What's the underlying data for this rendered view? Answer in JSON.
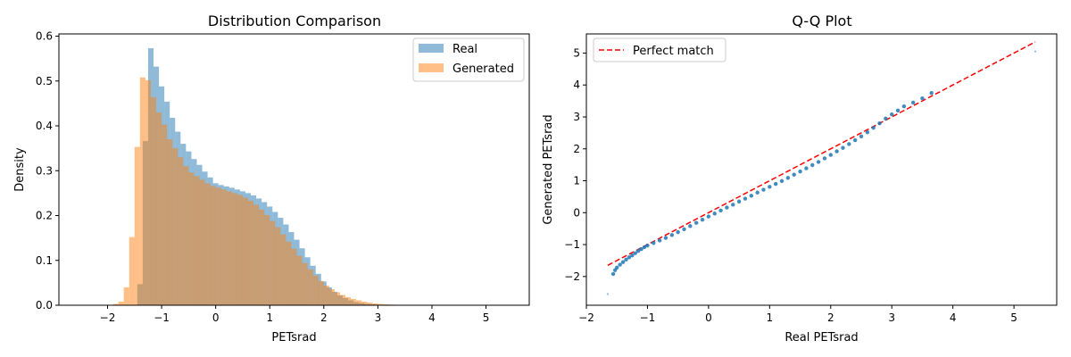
{
  "chart_data": [
    {
      "type": "histogram",
      "title": "Distribution Comparison",
      "xlabel": "PETsrad",
      "ylabel": "Density",
      "xlim": [
        -2.9,
        5.8
      ],
      "ylim": [
        0,
        0.605
      ],
      "xticks": [
        -2,
        -1,
        0,
        1,
        2,
        3,
        4,
        5
      ],
      "yticks": [
        0.0,
        0.1,
        0.2,
        0.3,
        0.4,
        0.5,
        0.6
      ],
      "grid": false,
      "legend_position": "top-right",
      "series": [
        {
          "name": "Real",
          "color": "#1f77b4",
          "opacity": 0.5,
          "bins": [
            [
              -1.55,
              -1.45,
              0.001
            ],
            [
              -1.45,
              -1.35,
              0.047
            ],
            [
              -1.35,
              -1.25,
              0.366
            ],
            [
              -1.25,
              -1.15,
              0.573
            ],
            [
              -1.15,
              -1.05,
              0.532
            ],
            [
              -1.05,
              -0.95,
              0.488
            ],
            [
              -0.95,
              -0.85,
              0.454
            ],
            [
              -0.85,
              -0.75,
              0.418
            ],
            [
              -0.75,
              -0.65,
              0.387
            ],
            [
              -0.65,
              -0.55,
              0.36
            ],
            [
              -0.55,
              -0.45,
              0.343
            ],
            [
              -0.45,
              -0.35,
              0.326
            ],
            [
              -0.35,
              -0.25,
              0.313
            ],
            [
              -0.25,
              -0.15,
              0.298
            ],
            [
              -0.15,
              -0.05,
              0.285
            ],
            [
              -0.05,
              0.05,
              0.272
            ],
            [
              0.05,
              0.15,
              0.268
            ],
            [
              0.15,
              0.25,
              0.265
            ],
            [
              0.25,
              0.35,
              0.262
            ],
            [
              0.35,
              0.45,
              0.258
            ],
            [
              0.45,
              0.55,
              0.254
            ],
            [
              0.55,
              0.65,
              0.25
            ],
            [
              0.65,
              0.75,
              0.245
            ],
            [
              0.75,
              0.85,
              0.238
            ],
            [
              0.85,
              0.95,
              0.23
            ],
            [
              0.95,
              1.05,
              0.22
            ],
            [
              1.05,
              1.15,
              0.208
            ],
            [
              1.15,
              1.25,
              0.195
            ],
            [
              1.25,
              1.35,
              0.18
            ],
            [
              1.35,
              1.45,
              0.163
            ],
            [
              1.45,
              1.55,
              0.146
            ],
            [
              1.55,
              1.65,
              0.127
            ],
            [
              1.65,
              1.75,
              0.107
            ],
            [
              1.75,
              1.85,
              0.088
            ],
            [
              1.85,
              1.95,
              0.07
            ],
            [
              1.95,
              2.05,
              0.053
            ],
            [
              2.05,
              2.15,
              0.04
            ],
            [
              2.15,
              2.25,
              0.03
            ],
            [
              2.25,
              2.35,
              0.022
            ],
            [
              2.35,
              2.45,
              0.016
            ],
            [
              2.45,
              2.55,
              0.011
            ],
            [
              2.55,
              2.65,
              0.007
            ],
            [
              2.65,
              2.75,
              0.005
            ],
            [
              2.75,
              2.85,
              0.003
            ],
            [
              2.85,
              2.95,
              0.002
            ],
            [
              2.95,
              3.05,
              0.001
            ]
          ]
        },
        {
          "name": "Generated",
          "color": "#ff7f0e",
          "opacity": 0.5,
          "bins": [
            [
              -2.0,
              -1.9,
              0.001
            ],
            [
              -1.9,
              -1.8,
              0.003
            ],
            [
              -1.8,
              -1.7,
              0.008
            ],
            [
              -1.7,
              -1.6,
              0.04
            ],
            [
              -1.6,
              -1.5,
              0.152
            ],
            [
              -1.5,
              -1.4,
              0.353
            ],
            [
              -1.4,
              -1.3,
              0.508
            ],
            [
              -1.3,
              -1.2,
              0.502
            ],
            [
              -1.2,
              -1.1,
              0.464
            ],
            [
              -1.1,
              -1.0,
              0.43
            ],
            [
              -1.0,
              -0.9,
              0.403
            ],
            [
              -0.9,
              -0.8,
              0.37
            ],
            [
              -0.8,
              -0.7,
              0.35
            ],
            [
              -0.7,
              -0.6,
              0.33
            ],
            [
              -0.6,
              -0.5,
              0.31
            ],
            [
              -0.5,
              -0.4,
              0.296
            ],
            [
              -0.4,
              -0.3,
              0.288
            ],
            [
              -0.3,
              -0.2,
              0.28
            ],
            [
              -0.2,
              -0.1,
              0.272
            ],
            [
              -0.1,
              0.0,
              0.266
            ],
            [
              0.0,
              0.1,
              0.262
            ],
            [
              0.1,
              0.2,
              0.258
            ],
            [
              0.2,
              0.3,
              0.254
            ],
            [
              0.3,
              0.4,
              0.25
            ],
            [
              0.4,
              0.5,
              0.246
            ],
            [
              0.5,
              0.6,
              0.24
            ],
            [
              0.6,
              0.7,
              0.233
            ],
            [
              0.7,
              0.8,
              0.224
            ],
            [
              0.8,
              0.9,
              0.213
            ],
            [
              0.9,
              1.0,
              0.201
            ],
            [
              1.0,
              1.1,
              0.188
            ],
            [
              1.1,
              1.2,
              0.174
            ],
            [
              1.2,
              1.3,
              0.158
            ],
            [
              1.3,
              1.4,
              0.142
            ],
            [
              1.4,
              1.5,
              0.126
            ],
            [
              1.5,
              1.6,
              0.11
            ],
            [
              1.6,
              1.7,
              0.094
            ],
            [
              1.7,
              1.8,
              0.08
            ],
            [
              1.8,
              1.9,
              0.066
            ],
            [
              1.9,
              2.0,
              0.054
            ],
            [
              2.0,
              2.1,
              0.044
            ],
            [
              2.1,
              2.2,
              0.036
            ],
            [
              2.2,
              2.3,
              0.029
            ],
            [
              2.3,
              2.4,
              0.023
            ],
            [
              2.4,
              2.5,
              0.018
            ],
            [
              2.5,
              2.6,
              0.014
            ],
            [
              2.6,
              2.7,
              0.011
            ],
            [
              2.7,
              2.8,
              0.008
            ],
            [
              2.8,
              2.9,
              0.006
            ],
            [
              2.9,
              3.0,
              0.004
            ],
            [
              3.0,
              3.1,
              0.003
            ],
            [
              3.1,
              3.2,
              0.002
            ],
            [
              3.2,
              3.3,
              0.0015
            ],
            [
              3.3,
              3.4,
              0.001
            ],
            [
              3.4,
              3.5,
              0.0008
            ],
            [
              3.5,
              3.6,
              0.0005
            ],
            [
              3.6,
              3.7,
              0.0003
            ]
          ]
        }
      ]
    },
    {
      "type": "scatter",
      "title": "Q-Q Plot",
      "xlabel": "Real PETsrad",
      "ylabel": "Generated PETsrad",
      "xlim": [
        -2.0,
        5.7
      ],
      "ylim": [
        -2.9,
        5.6
      ],
      "xticks": [
        -2,
        -1,
        0,
        1,
        2,
        3,
        4,
        5
      ],
      "yticks": [
        -2,
        -1,
        0,
        1,
        2,
        3,
        4,
        5
      ],
      "grid": false,
      "legend_position": "top-left",
      "series": [
        {
          "name": "Perfect match",
          "kind": "reference-line",
          "color": "#ff0000",
          "dash": "dashed",
          "points": [
            [
              -1.65,
              -1.65
            ],
            [
              5.35,
              5.35
            ]
          ]
        },
        {
          "kind": "quantiles",
          "color": "#1f77b4",
          "points": [
            [
              -1.65,
              -2.55
            ],
            [
              -1.56,
              -1.92
            ],
            [
              -1.53,
              -1.8
            ],
            [
              -1.5,
              -1.72
            ],
            [
              -1.45,
              -1.63
            ],
            [
              -1.4,
              -1.55
            ],
            [
              -1.35,
              -1.47
            ],
            [
              -1.3,
              -1.4
            ],
            [
              -1.25,
              -1.34
            ],
            [
              -1.2,
              -1.27
            ],
            [
              -1.15,
              -1.2
            ],
            [
              -1.1,
              -1.14
            ],
            [
              -1.05,
              -1.08
            ],
            [
              -1.0,
              -1.03
            ],
            [
              -0.9,
              -0.95
            ],
            [
              -0.8,
              -0.87
            ],
            [
              -0.7,
              -0.79
            ],
            [
              -0.6,
              -0.7
            ],
            [
              -0.5,
              -0.61
            ],
            [
              -0.4,
              -0.52
            ],
            [
              -0.3,
              -0.42
            ],
            [
              -0.2,
              -0.32
            ],
            [
              -0.1,
              -0.22
            ],
            [
              0.0,
              -0.12
            ],
            [
              0.1,
              -0.03
            ],
            [
              0.2,
              0.07
            ],
            [
              0.3,
              0.16
            ],
            [
              0.4,
              0.25
            ],
            [
              0.5,
              0.35
            ],
            [
              0.6,
              0.44
            ],
            [
              0.7,
              0.53
            ],
            [
              0.8,
              0.63
            ],
            [
              0.9,
              0.72
            ],
            [
              1.0,
              0.81
            ],
            [
              1.1,
              0.9
            ],
            [
              1.2,
              0.99
            ],
            [
              1.3,
              1.09
            ],
            [
              1.4,
              1.19
            ],
            [
              1.5,
              1.29
            ],
            [
              1.6,
              1.39
            ],
            [
              1.7,
              1.49
            ],
            [
              1.8,
              1.59
            ],
            [
              1.9,
              1.7
            ],
            [
              2.0,
              1.81
            ],
            [
              2.1,
              1.92
            ],
            [
              2.2,
              2.03
            ],
            [
              2.3,
              2.15
            ],
            [
              2.4,
              2.27
            ],
            [
              2.5,
              2.39
            ],
            [
              2.6,
              2.52
            ],
            [
              2.7,
              2.66
            ],
            [
              2.8,
              2.8
            ],
            [
              2.9,
              2.95
            ],
            [
              3.0,
              3.08
            ],
            [
              3.1,
              3.2
            ],
            [
              3.2,
              3.33
            ],
            [
              3.35,
              3.45
            ],
            [
              3.5,
              3.58
            ],
            [
              3.65,
              3.75
            ],
            [
              5.35,
              5.05
            ]
          ]
        }
      ]
    }
  ]
}
